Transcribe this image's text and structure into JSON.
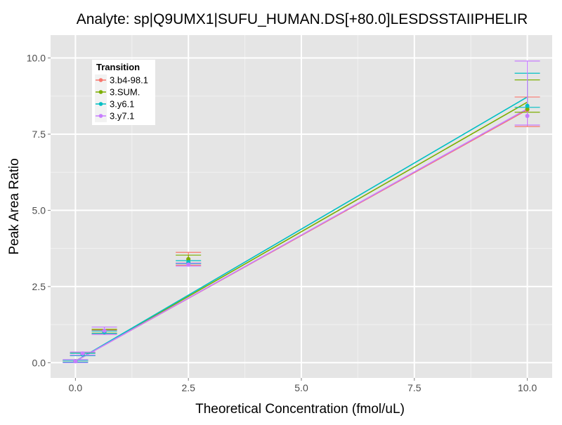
{
  "chart_data": {
    "type": "scatter",
    "title": "Analyte: sp|Q9UMX1|SUFU_HUMAN.DS[+80.0]LESDSSTAIIPHELIR",
    "xlabel": "Theoretical Concentration (fmol/uL)",
    "ylabel": "Peak Area Ratio",
    "xlim": [
      -0.55,
      10.55
    ],
    "ylim": [
      -0.5,
      10.75
    ],
    "x_ticks": [
      0.0,
      2.5,
      5.0,
      7.5,
      10.0
    ],
    "x_tick_labels": [
      "0.0",
      "2.5",
      "5.0",
      "7.5",
      "10.0"
    ],
    "y_ticks": [
      0.0,
      2.5,
      5.0,
      7.5,
      10.0
    ],
    "y_tick_labels": [
      "0.0",
      "2.5",
      "5.0",
      "7.5",
      "10.0"
    ],
    "grid": true,
    "legend": {
      "title": "Transition",
      "position": "top-left"
    },
    "series": [
      {
        "name": "3.b4-98.1",
        "color": "#F8766D",
        "points": [
          {
            "x": 0.0,
            "y": 0.05,
            "ymin": 0.02,
            "ymax": 0.08
          },
          {
            "x": 0.16,
            "y": 0.28,
            "ymin": 0.24,
            "ymax": 0.32
          },
          {
            "x": 0.64,
            "y": 1.0,
            "ymin": 0.93,
            "ymax": 1.07
          },
          {
            "x": 2.5,
            "y": 3.4,
            "ymin": 3.2,
            "ymax": 3.62
          },
          {
            "x": 10.0,
            "y": 8.3,
            "ymin": 7.75,
            "ymax": 8.72
          }
        ],
        "fit": [
          [
            0.0,
            0.05
          ],
          [
            10.0,
            8.3
          ]
        ]
      },
      {
        "name": "3.SUM.",
        "color": "#7CAE00",
        "points": [
          {
            "x": 0.0,
            "y": 0.05,
            "ymin": 0.02,
            "ymax": 0.08
          },
          {
            "x": 0.16,
            "y": 0.28,
            "ymin": 0.24,
            "ymax": 0.32
          },
          {
            "x": 0.64,
            "y": 1.03,
            "ymin": 0.97,
            "ymax": 1.1
          },
          {
            "x": 2.5,
            "y": 3.4,
            "ymin": 3.27,
            "ymax": 3.53
          },
          {
            "x": 10.0,
            "y": 8.32,
            "ymin": 8.22,
            "ymax": 9.28
          }
        ],
        "fit": [
          [
            0.0,
            0.05
          ],
          [
            10.0,
            8.55
          ]
        ]
      },
      {
        "name": "3.y6.1",
        "color": "#00BFC4",
        "points": [
          {
            "x": 0.0,
            "y": 0.05,
            "ymin": 0.02,
            "ymax": 0.08
          },
          {
            "x": 0.16,
            "y": 0.27,
            "ymin": 0.23,
            "ymax": 0.31
          },
          {
            "x": 0.64,
            "y": 1.0,
            "ymin": 0.96,
            "ymax": 1.04
          },
          {
            "x": 2.5,
            "y": 3.3,
            "ymin": 3.25,
            "ymax": 3.35
          },
          {
            "x": 10.0,
            "y": 8.43,
            "ymin": 8.38,
            "ymax": 9.5
          }
        ],
        "fit": [
          [
            0.0,
            0.05
          ],
          [
            10.0,
            8.72
          ]
        ]
      },
      {
        "name": "3.y7.1",
        "color": "#C77CFF",
        "points": [
          {
            "x": 0.0,
            "y": 0.05,
            "ymin": 0.0,
            "ymax": 0.1
          },
          {
            "x": 0.16,
            "y": 0.3,
            "ymin": 0.25,
            "ymax": 0.35
          },
          {
            "x": 0.64,
            "y": 1.05,
            "ymin": 0.93,
            "ymax": 1.17
          },
          {
            "x": 2.5,
            "y": 3.22,
            "ymin": 3.17,
            "ymax": 3.27
          },
          {
            "x": 10.0,
            "y": 8.1,
            "ymin": 7.8,
            "ymax": 9.9
          }
        ],
        "fit": [
          [
            0.0,
            0.05
          ],
          [
            10.0,
            8.33
          ]
        ]
      }
    ]
  }
}
